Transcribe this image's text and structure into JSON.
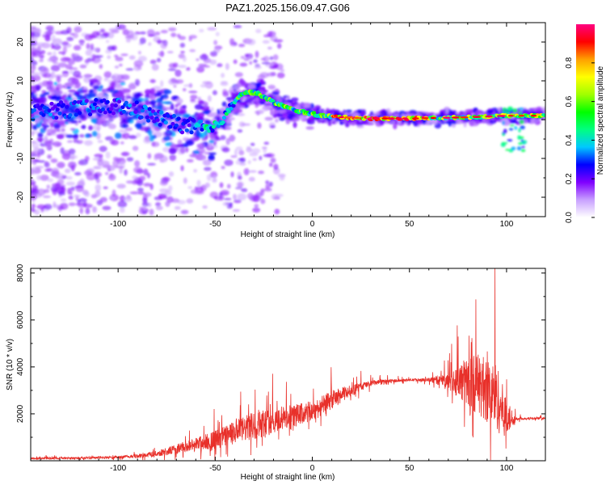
{
  "title": "PAZ1.2025.156.09.47.G06",
  "chart_data": [
    {
      "type": "heatmap",
      "name": "spectrogram",
      "xlabel": "Height of straight line (km)",
      "ylabel": "Frequency (Hz)",
      "xlim": [
        -145,
        120
      ],
      "ylim": [
        -25,
        25
      ],
      "xticks": [
        -100,
        -50,
        0,
        50,
        100
      ],
      "yticks": [
        -20,
        -10,
        0,
        10,
        20
      ],
      "ridge": {
        "x": [
          -145,
          -130,
          -115,
          -100,
          -90,
          -80,
          -70,
          -60,
          -52,
          -48,
          -44,
          -40,
          -37,
          -34,
          -30,
          -27,
          -24,
          -20,
          -15,
          -10,
          -5,
          0,
          5,
          10,
          20,
          30,
          40,
          50,
          60,
          70,
          80,
          90,
          100,
          110,
          120
        ],
        "y": [
          2,
          2.5,
          3,
          3.5,
          2.5,
          0.5,
          -1,
          -2,
          -3,
          -1,
          1.5,
          5,
          6.5,
          7,
          7,
          6.5,
          5.5,
          4.5,
          3.5,
          2.5,
          2,
          1.5,
          1,
          0.8,
          0.5,
          0.3,
          0.3,
          0.3,
          0.4,
          0.5,
          0.6,
          0.8,
          1,
          1,
          1
        ]
      },
      "colorbar": {
        "label": "Normalized spectral amplitude",
        "range": [
          0,
          1
        ],
        "ticks": [
          "0.0",
          "0.2",
          "0.4",
          "0.6",
          "0.8"
        ],
        "colors": [
          "#ffffff",
          "#c8a0ff",
          "#8000ff",
          "#0000ff",
          "#00c8ff",
          "#00ff80",
          "#00ff00",
          "#a0ff00",
          "#ffff00",
          "#ffa000",
          "#ff0000",
          "#ff0080"
        ]
      }
    },
    {
      "type": "line",
      "name": "snr",
      "xlabel": "Height of straight line (km)",
      "ylabel": "SNR (10 * v/v)",
      "xlim": [
        -145,
        120
      ],
      "ylim": [
        0,
        8200
      ],
      "xticks": [
        -100,
        -50,
        0,
        50,
        100
      ],
      "yticks": [
        2000,
        4000,
        6000,
        8000
      ],
      "color": "#e8302a",
      "envelope": {
        "x": [
          -145,
          -120,
          -100,
          -90,
          -80,
          -70,
          -60,
          -50,
          -40,
          -30,
          -20,
          -10,
          0,
          10,
          20,
          30,
          40,
          50,
          60,
          70,
          75,
          80,
          85,
          90,
          95,
          100,
          105,
          110,
          120
        ],
        "base": [
          100,
          120,
          150,
          200,
          300,
          500,
          700,
          900,
          1200,
          1500,
          1700,
          1900,
          2100,
          2600,
          3000,
          3300,
          3400,
          3450,
          3450,
          3400,
          3400,
          3350,
          3300,
          3000,
          2700,
          1800,
          1800,
          1800,
          1800
        ],
        "noise": [
          80,
          90,
          120,
          180,
          250,
          400,
          600,
          800,
          1000,
          1200,
          1100,
          1000,
          900,
          800,
          500,
          250,
          150,
          100,
          150,
          700,
          1400,
          2200,
          2600,
          2800,
          3000,
          1600,
          150,
          100,
          80
        ]
      },
      "peak": {
        "x": 94,
        "y": 8200
      }
    }
  ]
}
